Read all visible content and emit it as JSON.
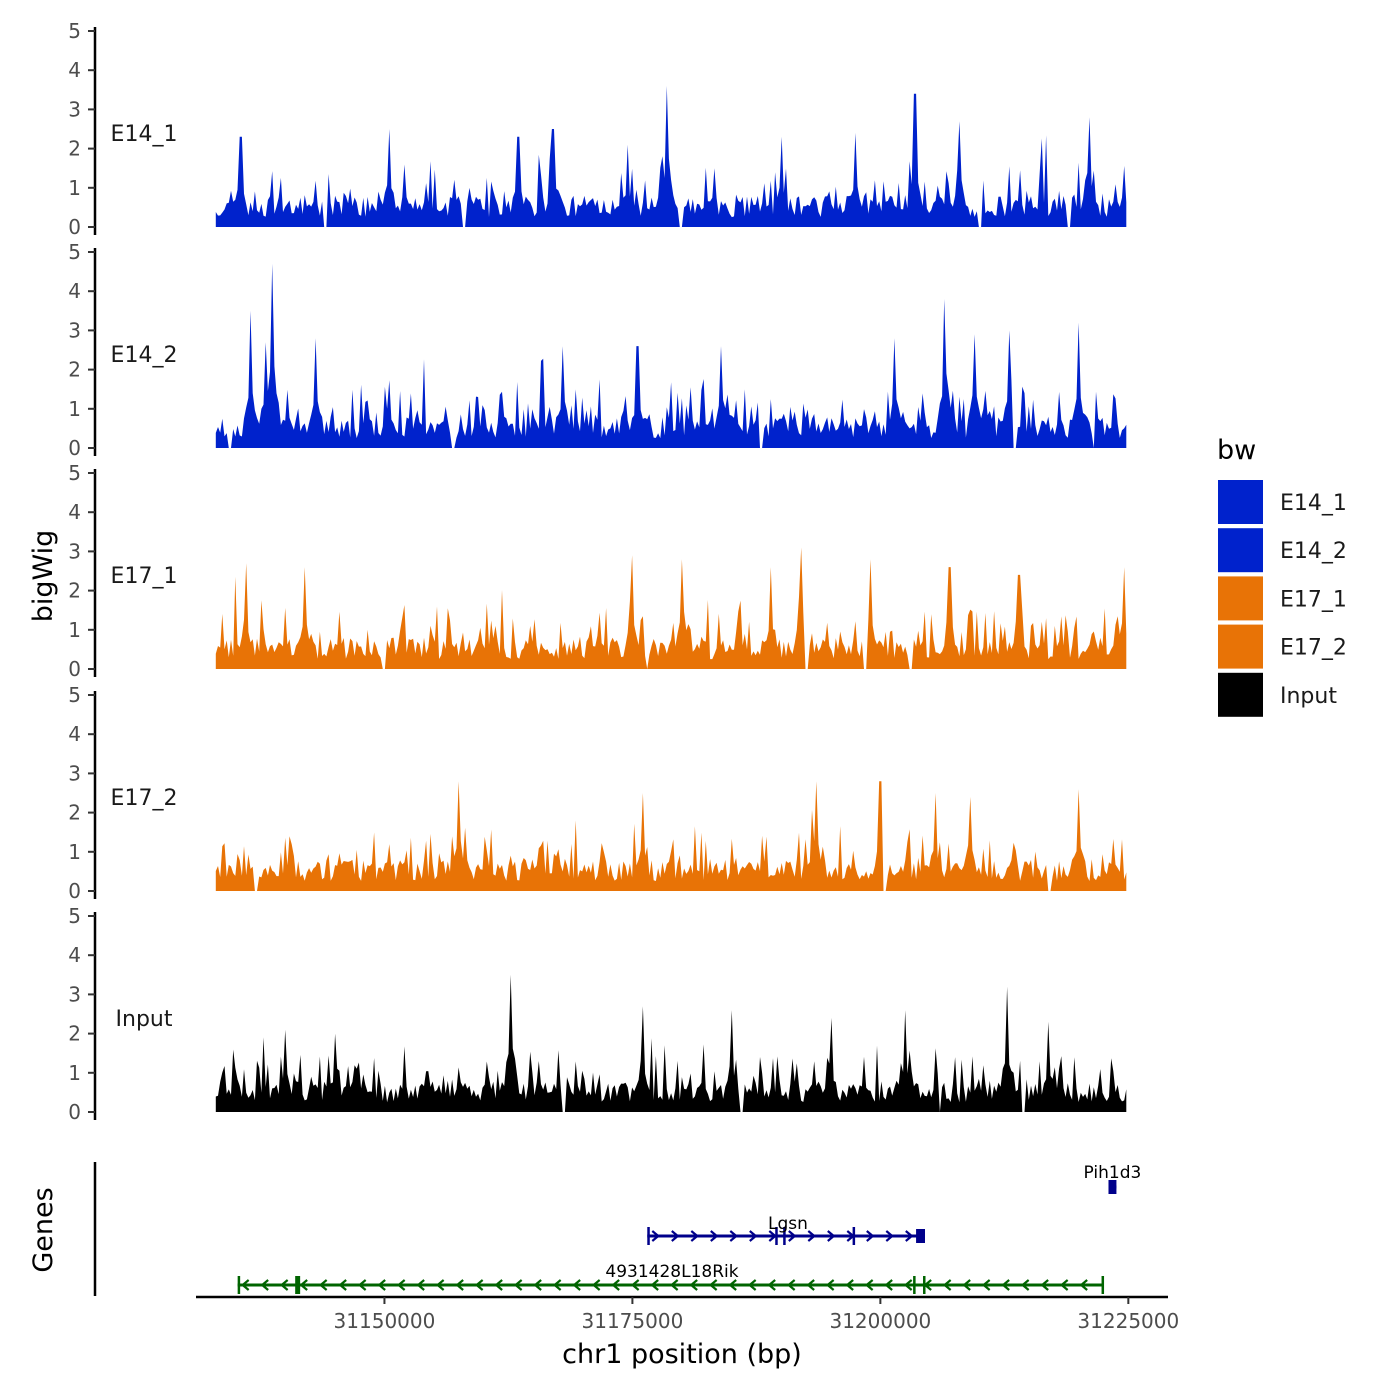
{
  "chart_data": {
    "type": "area",
    "chromosome": "chr1",
    "region": [
      31133000,
      31224800
    ],
    "xlim": [
      31131000,
      31229000
    ],
    "x_ticks": [
      31150000,
      31175000,
      31200000,
      31225000
    ],
    "x_tick_labels": [
      "31150000",
      "31175000",
      "31200000",
      "31225000"
    ],
    "xlabel": "chr1 position (bp)",
    "ylabel": "bigWig",
    "genes_label": "Genes",
    "ylim": [
      0,
      5
    ],
    "y_ticks": [
      0,
      1,
      2,
      3,
      4,
      5
    ],
    "y_tick_labels": [
      "0",
      "1",
      "2",
      "3",
      "4",
      "5"
    ],
    "legend": {
      "title": "bw",
      "entries": [
        {
          "name": "E14_1",
          "color": "#0022CC"
        },
        {
          "name": "E14_2",
          "color": "#0022CC"
        },
        {
          "name": "E17_1",
          "color": "#E87306"
        },
        {
          "name": "E17_2",
          "color": "#E87306"
        },
        {
          "name": "Input",
          "color": "#000000"
        }
      ]
    },
    "series": [
      {
        "name": "E14_1",
        "label": "E14_1",
        "color": "#0022CC",
        "seed": 11,
        "max": 3.6,
        "peaks": [
          {
            "x": 31135500,
            "v": 2.3
          },
          {
            "x": 31150500,
            "v": 2.5
          },
          {
            "x": 31163500,
            "v": 2.3
          },
          {
            "x": 31167000,
            "v": 2.5
          },
          {
            "x": 31174500,
            "v": 2.1
          },
          {
            "x": 31178500,
            "v": 3.6
          },
          {
            "x": 31190000,
            "v": 2.3
          },
          {
            "x": 31197500,
            "v": 2.4
          },
          {
            "x": 31203500,
            "v": 3.4
          },
          {
            "x": 31208000,
            "v": 2.7
          },
          {
            "x": 31221000,
            "v": 2.8
          }
        ],
        "gaps": [
          31144000,
          31158000,
          31179800,
          31210000,
          31219000
        ]
      },
      {
        "name": "E14_2",
        "label": "E14_2",
        "color": "#0022CC",
        "seed": 23,
        "max": 4.7,
        "peaks": [
          {
            "x": 31136500,
            "v": 3.5
          },
          {
            "x": 31138000,
            "v": 2.7
          },
          {
            "x": 31138700,
            "v": 4.7
          },
          {
            "x": 31143000,
            "v": 2.8
          },
          {
            "x": 31168000,
            "v": 2.6
          },
          {
            "x": 31175500,
            "v": 2.6
          },
          {
            "x": 31184000,
            "v": 2.6
          },
          {
            "x": 31201500,
            "v": 2.8
          },
          {
            "x": 31206500,
            "v": 3.8
          },
          {
            "x": 31209500,
            "v": 2.9
          },
          {
            "x": 31213000,
            "v": 3.0
          },
          {
            "x": 31220000,
            "v": 3.2
          }
        ],
        "gaps": [
          31134500,
          31157000,
          31188000,
          31213500,
          31221500
        ]
      },
      {
        "name": "E17_1",
        "label": "E17_1",
        "color": "#E87306",
        "seed": 37,
        "max": 3.1,
        "peaks": [
          {
            "x": 31136000,
            "v": 2.7
          },
          {
            "x": 31142000,
            "v": 2.6
          },
          {
            "x": 31175000,
            "v": 2.9
          },
          {
            "x": 31180000,
            "v": 2.8
          },
          {
            "x": 31189000,
            "v": 2.6
          },
          {
            "x": 31192000,
            "v": 3.1
          },
          {
            "x": 31199000,
            "v": 2.8
          },
          {
            "x": 31207000,
            "v": 2.6
          },
          {
            "x": 31214000,
            "v": 2.4
          },
          {
            "x": 31224500,
            "v": 2.6
          }
        ],
        "gaps": [
          31150000,
          31176500,
          31192500,
          31198500,
          31203000
        ]
      },
      {
        "name": "E17_2",
        "label": "E17_2",
        "color": "#E87306",
        "seed": 53,
        "max": 2.8,
        "peaks": [
          {
            "x": 31157500,
            "v": 2.8
          },
          {
            "x": 31176000,
            "v": 2.5
          },
          {
            "x": 31193500,
            "v": 2.8
          },
          {
            "x": 31200000,
            "v": 2.8
          },
          {
            "x": 31205500,
            "v": 2.5
          },
          {
            "x": 31209000,
            "v": 2.4
          },
          {
            "x": 31220000,
            "v": 2.6
          }
        ],
        "gaps": [
          31137000,
          31200500,
          31217000
        ]
      },
      {
        "name": "Input",
        "label": "Input",
        "color": "#000000",
        "seed": 71,
        "max": 3.5,
        "peaks": [
          {
            "x": 31140000,
            "v": 2.1
          },
          {
            "x": 31145000,
            "v": 2.0
          },
          {
            "x": 31162800,
            "v": 3.5
          },
          {
            "x": 31176000,
            "v": 2.7
          },
          {
            "x": 31185000,
            "v": 2.6
          },
          {
            "x": 31195000,
            "v": 2.4
          },
          {
            "x": 31202500,
            "v": 2.6
          },
          {
            "x": 31212800,
            "v": 3.2
          },
          {
            "x": 31217000,
            "v": 2.3
          }
        ],
        "gaps": [
          31168000,
          31186000,
          31206000,
          31214500
        ]
      }
    ],
    "genes": [
      {
        "name": "Pih1d3",
        "strand": "+",
        "row": 0,
        "start": 31223000,
        "end": 31223800,
        "color": "#00008B",
        "exons": [
          {
            "start": 31223000,
            "end": 31223800
          }
        ]
      },
      {
        "name": "Lgsn",
        "strand": "+",
        "row": 1,
        "start": 31176500,
        "end": 31204000,
        "color": "#00008B",
        "exons": [
          {
            "start": 31176500,
            "end": 31176600
          },
          {
            "start": 31189400,
            "end": 31189500
          },
          {
            "start": 31190200,
            "end": 31190300
          },
          {
            "start": 31197200,
            "end": 31197300
          },
          {
            "start": 31203600,
            "end": 31204500
          }
        ]
      },
      {
        "name": "4931428L18Rik",
        "strand": "-",
        "row": 2,
        "start": 31135200,
        "end": 31222400,
        "color": "#006400",
        "exons": [
          {
            "start": 31135200,
            "end": 31135300
          },
          {
            "start": 31141000,
            "end": 31141500
          },
          {
            "start": 31203300,
            "end": 31203500
          },
          {
            "start": 31204300,
            "end": 31204500
          },
          {
            "start": 31222300,
            "end": 31222400
          }
        ]
      }
    ]
  }
}
